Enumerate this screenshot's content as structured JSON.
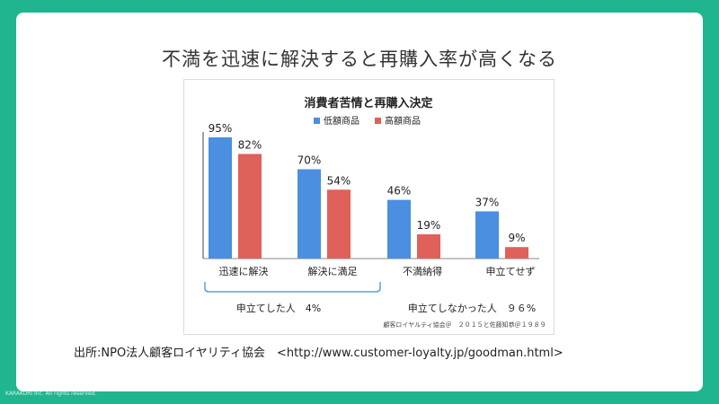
{
  "slide": {
    "title": "不満を迅速に解決すると再購入率が高くなる",
    "source": "出所:NPO法人顧客ロイヤリティ協会　<http://www.customer-loyalty.jp/goodman.html>",
    "copyright": "KARAKURI Inc. All rights reserved."
  },
  "colors": {
    "background": "#1fb58f",
    "low": "#4a8fe0",
    "high": "#e0605a",
    "brace": "#5aa0e0"
  },
  "chart_data": {
    "type": "bar",
    "title": "消費者苦情と再購入決定",
    "categories": [
      "迅速に解決",
      "解決に満足",
      "不満納得",
      "申立てせず"
    ],
    "series": [
      {
        "name": "低額商品",
        "values": [
          95,
          70,
          46,
          37
        ]
      },
      {
        "name": "高額商品",
        "values": [
          82,
          54,
          19,
          9
        ]
      }
    ],
    "value_labels": [
      [
        "95%",
        "70%",
        "46%",
        "37%"
      ],
      [
        "82%",
        "54%",
        "19%",
        "9%"
      ]
    ],
    "ylim": [
      0,
      100
    ],
    "legend": "top",
    "grid": false,
    "group_labels": [
      "申立てした人　4%",
      "申立てしなかった人　９６%"
    ],
    "credit": "顧客ロイヤルティ協会＠　２０１５と佐藤知恭＠１９８９"
  }
}
